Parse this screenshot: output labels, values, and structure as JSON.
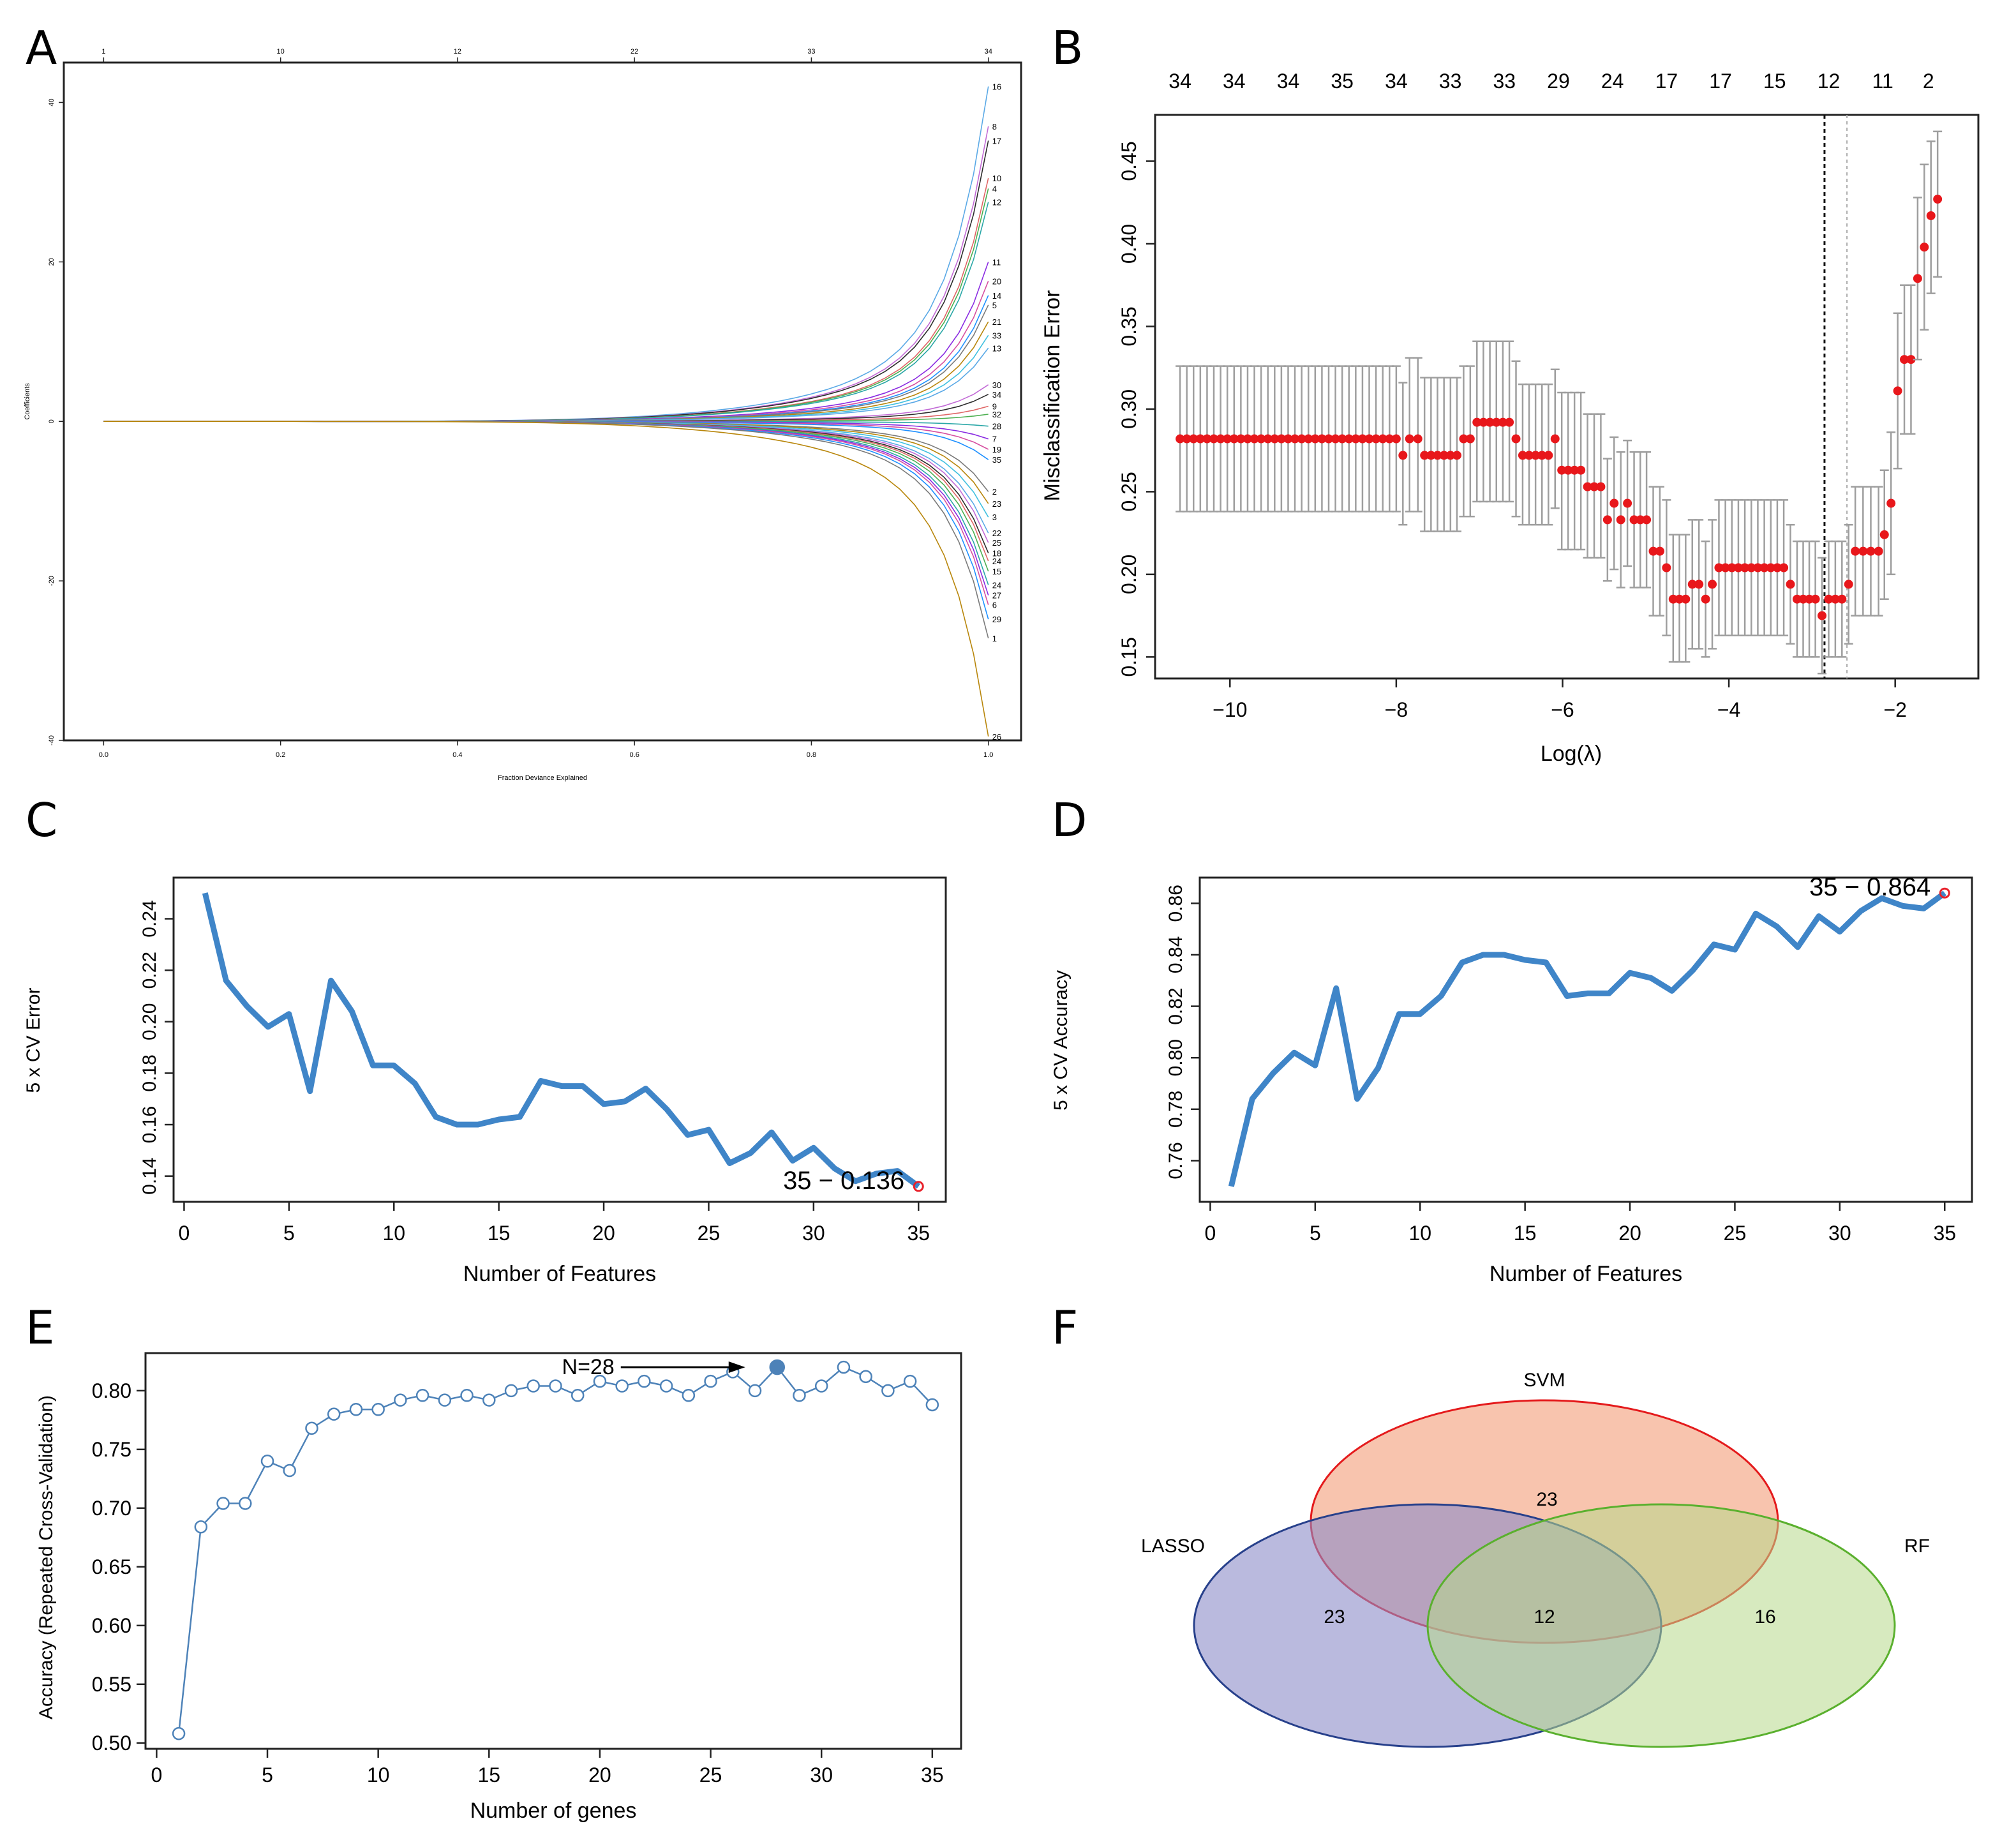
{
  "panels": {
    "A": {
      "letter": "A"
    },
    "B": {
      "letter": "B"
    },
    "C": {
      "letter": "C"
    },
    "D": {
      "letter": "D"
    },
    "E": {
      "letter": "E"
    },
    "F": {
      "letter": "F"
    }
  },
  "chart_data": [
    {
      "panel": "A",
      "type": "line",
      "title": "",
      "xlabel": "Fraction Deviance Explained",
      "ylabel": "Coefficients",
      "xlim": [
        0,
        1.0
      ],
      "ylim": [
        -40,
        45
      ],
      "x_ticks": [
        "0.0",
        "0.2",
        "0.4",
        "0.6",
        "0.8",
        "1.0"
      ],
      "x_tick_values": [
        0,
        0.2,
        0.4,
        0.6,
        0.8,
        1.0
      ],
      "y_ticks": [
        "-40",
        "-20",
        "0",
        "20",
        "40"
      ],
      "y_tick_values": [
        -40,
        -20,
        0,
        20,
        40
      ],
      "top_ticks": [
        "1",
        "10",
        "12",
        "22",
        "33",
        "34"
      ],
      "top_tick_values": [
        0,
        0.2,
        0.4,
        0.6,
        0.8,
        1.0
      ],
      "path_end_labels": [
        {
          "label": "16",
          "end": 42
        },
        {
          "label": "8",
          "end": 37
        },
        {
          "label": "17",
          "end": 35.2
        },
        {
          "label": "10",
          "end": 30.5
        },
        {
          "label": "4",
          "end": 29.2
        },
        {
          "label": "12",
          "end": 27.5
        },
        {
          "label": "11",
          "end": 20
        },
        {
          "label": "20",
          "end": 17.6
        },
        {
          "label": "14",
          "end": 15.8
        },
        {
          "label": "5",
          "end": 14.6
        },
        {
          "label": "21",
          "end": 12.5
        },
        {
          "label": "33",
          "end": 10.8
        },
        {
          "label": "13",
          "end": 9.2
        },
        {
          "label": "30",
          "end": 4.6
        },
        {
          "label": "34",
          "end": 3.4
        },
        {
          "label": "9",
          "end": 1.9
        },
        {
          "label": "32",
          "end": 0.9
        },
        {
          "label": "28",
          "end": -0.6
        },
        {
          "label": "7",
          "end": -2.2
        },
        {
          "label": "19",
          "end": -3.5
        },
        {
          "label": "35",
          "end": -4.8
        },
        {
          "label": "2",
          "end": -8.8
        },
        {
          "label": "23",
          "end": -10.3
        },
        {
          "label": "3",
          "end": -12
        },
        {
          "label": "22",
          "end": -14
        },
        {
          "label": "25",
          "end": -15.2
        },
        {
          "label": "18",
          "end": -16.5
        },
        {
          "label": "24",
          "end": -17.5
        },
        {
          "label": "15",
          "end": -18.8
        },
        {
          "label": "24",
          "end": -20.5
        },
        {
          "label": "27",
          "end": -21.8
        },
        {
          "label": "6",
          "end": -23
        },
        {
          "label": "29",
          "end": -24.8
        },
        {
          "label": "1",
          "end": -27.2
        },
        {
          "label": "26",
          "end": -39.5
        }
      ],
      "path_colors": [
        "#5aa9e6",
        "#c26ad6",
        "#2b2b2b",
        "#e06666",
        "#4caf50",
        "#2aa7a7",
        "#8a2be2",
        "#d64fa0",
        "#1e90ff",
        "#7a7a7a",
        "#b8860b",
        "#40c0e0"
      ]
    },
    {
      "panel": "B",
      "type": "scatter",
      "title": "",
      "xlabel": "Log(λ)",
      "ylabel": "Misclassification Error",
      "xlim": [
        -10.9,
        -1.0
      ],
      "ylim": [
        0.137,
        0.478
      ],
      "x_ticks": [
        "−10",
        "−8",
        "−6",
        "−4",
        "−2"
      ],
      "x_tick_values": [
        -10,
        -8,
        -6,
        -4,
        -2
      ],
      "y_ticks": [
        "0.15",
        "0.20",
        "0.25",
        "0.30",
        "0.35",
        "0.40",
        "0.45"
      ],
      "y_tick_values": [
        0.15,
        0.2,
        0.25,
        0.3,
        0.35,
        0.4,
        0.45
      ],
      "top_labels": [
        "34",
        "34",
        "34",
        "35",
        "34",
        "33",
        "33",
        "29",
        "24",
        "17",
        "17",
        "15",
        "12",
        "11",
        "2"
      ],
      "top_label_x": [
        -10.6,
        -9.95,
        -9.3,
        -8.65,
        -8.0,
        -7.35,
        -6.7,
        -6.05,
        -5.4,
        -4.75,
        -4.1,
        -3.45,
        -2.8,
        -2.15,
        -1.6
      ],
      "lambda_min": -2.85,
      "lambda_1se": -2.58,
      "segments": [
        {
          "x0": -10.6,
          "x1": -8.0,
          "n": 33,
          "mean": 0.282,
          "lo": 0.238,
          "hi": 0.326
        },
        {
          "x0": -7.92,
          "x1": -7.92,
          "n": 1,
          "mean": 0.272,
          "lo": 0.23,
          "hi": 0.316
        },
        {
          "x0": -7.84,
          "x1": -7.74,
          "n": 2,
          "mean": 0.282,
          "lo": 0.238,
          "hi": 0.331
        },
        {
          "x0": -7.66,
          "x1": -7.27,
          "n": 6,
          "mean": 0.272,
          "lo": 0.226,
          "hi": 0.319
        },
        {
          "x0": -7.19,
          "x1": -7.11,
          "n": 2,
          "mean": 0.282,
          "lo": 0.235,
          "hi": 0.326
        },
        {
          "x0": -7.03,
          "x1": -6.64,
          "n": 6,
          "mean": 0.292,
          "lo": 0.244,
          "hi": 0.341
        },
        {
          "x0": -6.56,
          "x1": -6.56,
          "n": 1,
          "mean": 0.282,
          "lo": 0.235,
          "hi": 0.329
        },
        {
          "x0": -6.48,
          "x1": -6.17,
          "n": 5,
          "mean": 0.272,
          "lo": 0.23,
          "hi": 0.315
        },
        {
          "x0": -6.09,
          "x1": -6.09,
          "n": 1,
          "mean": 0.282,
          "lo": 0.24,
          "hi": 0.324
        },
        {
          "x0": -6.01,
          "x1": -5.78,
          "n": 4,
          "mean": 0.263,
          "lo": 0.215,
          "hi": 0.31
        },
        {
          "x0": -5.7,
          "x1": -5.54,
          "n": 3,
          "mean": 0.253,
          "lo": 0.21,
          "hi": 0.297
        },
        {
          "x0": -5.46,
          "x1": -5.46,
          "n": 1,
          "mean": 0.233,
          "lo": 0.196,
          "hi": 0.27
        },
        {
          "x0": -5.38,
          "x1": -5.38,
          "n": 1,
          "mean": 0.243,
          "lo": 0.203,
          "hi": 0.283
        },
        {
          "x0": -5.3,
          "x1": -5.3,
          "n": 1,
          "mean": 0.233,
          "lo": 0.192,
          "hi": 0.274
        },
        {
          "x0": -5.22,
          "x1": -5.22,
          "n": 1,
          "mean": 0.243,
          "lo": 0.205,
          "hi": 0.281
        },
        {
          "x0": -5.14,
          "x1": -4.99,
          "n": 3,
          "mean": 0.233,
          "lo": 0.192,
          "hi": 0.274
        },
        {
          "x0": -4.91,
          "x1": -4.83,
          "n": 2,
          "mean": 0.214,
          "lo": 0.175,
          "hi": 0.253
        },
        {
          "x0": -4.75,
          "x1": -4.75,
          "n": 1,
          "mean": 0.204,
          "lo": 0.163,
          "hi": 0.245
        },
        {
          "x0": -4.67,
          "x1": -4.52,
          "n": 3,
          "mean": 0.185,
          "lo": 0.147,
          "hi": 0.224
        },
        {
          "x0": -4.44,
          "x1": -4.36,
          "n": 2,
          "mean": 0.194,
          "lo": 0.155,
          "hi": 0.233
        },
        {
          "x0": -4.28,
          "x1": -4.28,
          "n": 1,
          "mean": 0.185,
          "lo": 0.15,
          "hi": 0.22
        },
        {
          "x0": -4.2,
          "x1": -4.2,
          "n": 1,
          "mean": 0.194,
          "lo": 0.155,
          "hi": 0.233
        },
        {
          "x0": -4.12,
          "x1": -3.34,
          "n": 11,
          "mean": 0.204,
          "lo": 0.163,
          "hi": 0.245
        },
        {
          "x0": -3.26,
          "x1": -3.26,
          "n": 1,
          "mean": 0.194,
          "lo": 0.158,
          "hi": 0.23
        },
        {
          "x0": -3.18,
          "x1": -2.96,
          "n": 4,
          "mean": 0.185,
          "lo": 0.15,
          "hi": 0.22
        },
        {
          "x0": -2.88,
          "x1": -2.88,
          "n": 1,
          "mean": 0.175,
          "lo": 0.14,
          "hi": 0.21
        },
        {
          "x0": -2.8,
          "x1": -2.64,
          "n": 3,
          "mean": 0.185,
          "lo": 0.15,
          "hi": 0.22
        },
        {
          "x0": -2.56,
          "x1": -2.56,
          "n": 1,
          "mean": 0.194,
          "lo": 0.158,
          "hi": 0.23
        },
        {
          "x0": -2.48,
          "x1": -2.2,
          "n": 4,
          "mean": 0.214,
          "lo": 0.175,
          "hi": 0.253
        },
        {
          "x0": -2.13,
          "x1": -2.13,
          "n": 1,
          "mean": 0.224,
          "lo": 0.185,
          "hi": 0.263
        },
        {
          "x0": -2.05,
          "x1": -2.05,
          "n": 1,
          "mean": 0.243,
          "lo": 0.2,
          "hi": 0.286
        },
        {
          "x0": -1.97,
          "x1": -1.97,
          "n": 1,
          "mean": 0.311,
          "lo": 0.264,
          "hi": 0.358
        },
        {
          "x0": -1.89,
          "x1": -1.81,
          "n": 2,
          "mean": 0.33,
          "lo": 0.285,
          "hi": 0.375
        },
        {
          "x0": -1.73,
          "x1": -1.73,
          "n": 1,
          "mean": 0.379,
          "lo": 0.33,
          "hi": 0.428
        },
        {
          "x0": -1.65,
          "x1": -1.65,
          "n": 1,
          "mean": 0.398,
          "lo": 0.348,
          "hi": 0.448
        },
        {
          "x0": -1.57,
          "x1": -1.57,
          "n": 1,
          "mean": 0.417,
          "lo": 0.37,
          "hi": 0.462
        },
        {
          "x0": -1.49,
          "x1": -1.49,
          "n": 1,
          "mean": 0.427,
          "lo": 0.38,
          "hi": 0.468
        }
      ]
    },
    {
      "panel": "C",
      "type": "line",
      "title": "",
      "xlabel": "Number of Features",
      "ylabel": "5 x CV Error",
      "xlim": [
        -0.5,
        36.3
      ],
      "ylim": [
        0.13,
        0.256
      ],
      "x_ticks": [
        "0",
        "5",
        "10",
        "15",
        "20",
        "25",
        "30",
        "35"
      ],
      "x_tick_values": [
        0,
        5,
        10,
        15,
        20,
        25,
        30,
        35
      ],
      "y_ticks": [
        "0.14",
        "0.16",
        "0.18",
        "0.20",
        "0.22",
        "0.24"
      ],
      "y_tick_values": [
        0.14,
        0.16,
        0.18,
        0.2,
        0.22,
        0.24
      ],
      "x": [
        1,
        2,
        3,
        4,
        5,
        6,
        7,
        8,
        9,
        10,
        11,
        12,
        13,
        14,
        15,
        16,
        17,
        18,
        19,
        20,
        21,
        22,
        23,
        24,
        25,
        26,
        27,
        28,
        29,
        30,
        31,
        32,
        33,
        34,
        35
      ],
      "y": [
        0.25,
        0.216,
        0.206,
        0.198,
        0.203,
        0.173,
        0.216,
        0.204,
        0.183,
        0.183,
        0.176,
        0.163,
        0.16,
        0.16,
        0.162,
        0.163,
        0.177,
        0.175,
        0.175,
        0.168,
        0.169,
        0.174,
        0.166,
        0.156,
        0.158,
        0.145,
        0.149,
        0.157,
        0.146,
        0.151,
        0.143,
        0.138,
        0.141,
        0.142,
        0.136
      ],
      "annotation": "35 − 0.136",
      "annotation_color": "#e8212b",
      "line_color": "#3f85c8"
    },
    {
      "panel": "D",
      "type": "line",
      "title": "",
      "xlabel": "Number of Features",
      "ylabel": "5 x CV Accuracy",
      "xlim": [
        -0.5,
        36.3
      ],
      "ylim": [
        0.744,
        0.87
      ],
      "x_ticks": [
        "0",
        "5",
        "10",
        "15",
        "20",
        "25",
        "30",
        "35"
      ],
      "x_tick_values": [
        0,
        5,
        10,
        15,
        20,
        25,
        30,
        35
      ],
      "y_ticks": [
        "0.76",
        "0.78",
        "0.80",
        "0.82",
        "0.84",
        "0.86"
      ],
      "y_tick_values": [
        0.76,
        0.78,
        0.8,
        0.82,
        0.84,
        0.86
      ],
      "x": [
        1,
        2,
        3,
        4,
        5,
        6,
        7,
        8,
        9,
        10,
        11,
        12,
        13,
        14,
        15,
        16,
        17,
        18,
        19,
        20,
        21,
        22,
        23,
        24,
        25,
        26,
        27,
        28,
        29,
        30,
        31,
        32,
        33,
        34,
        35
      ],
      "y": [
        0.75,
        0.784,
        0.794,
        0.802,
        0.797,
        0.827,
        0.784,
        0.796,
        0.817,
        0.817,
        0.824,
        0.837,
        0.84,
        0.84,
        0.838,
        0.837,
        0.824,
        0.825,
        0.825,
        0.833,
        0.831,
        0.826,
        0.834,
        0.844,
        0.842,
        0.856,
        0.851,
        0.843,
        0.855,
        0.849,
        0.857,
        0.862,
        0.859,
        0.858,
        0.864
      ],
      "annotation": "35 − 0.864",
      "annotation_color": "#e8212b",
      "line_color": "#3f85c8"
    },
    {
      "panel": "E",
      "type": "line",
      "title": "",
      "xlabel": "Number of genes",
      "ylabel": "Accuracy (Repeated Cross-Validation)",
      "xlim": [
        -0.5,
        36.3
      ],
      "ylim": [
        0.495,
        0.832
      ],
      "x_ticks": [
        "0",
        "5",
        "10",
        "15",
        "20",
        "25",
        "30",
        "35"
      ],
      "x_tick_values": [
        0,
        5,
        10,
        15,
        20,
        25,
        30,
        35
      ],
      "y_ticks": [
        "0.50",
        "0.55",
        "0.60",
        "0.65",
        "0.70",
        "0.75",
        "0.80"
      ],
      "y_tick_values": [
        0.5,
        0.55,
        0.6,
        0.65,
        0.7,
        0.75,
        0.8
      ],
      "x": [
        1,
        2,
        3,
        4,
        5,
        6,
        7,
        8,
        9,
        10,
        11,
        12,
        13,
        14,
        15,
        16,
        17,
        18,
        19,
        20,
        21,
        22,
        23,
        24,
        25,
        26,
        27,
        28,
        29,
        30,
        31,
        32,
        33,
        34,
        35
      ],
      "y": [
        0.508,
        0.684,
        0.704,
        0.704,
        0.74,
        0.732,
        0.768,
        0.78,
        0.784,
        0.784,
        0.792,
        0.796,
        0.792,
        0.796,
        0.792,
        0.8,
        0.804,
        0.804,
        0.796,
        0.808,
        0.804,
        0.808,
        0.804,
        0.796,
        0.808,
        0.816,
        0.8,
        0.82,
        0.796,
        0.804,
        0.82,
        0.812,
        0.8,
        0.808,
        0.788
      ],
      "highlight_x": 28,
      "annotation": "N=28",
      "line_color": "#4d82b8"
    },
    {
      "panel": "F",
      "type": "venn",
      "sets": [
        {
          "name": "SVM",
          "fill": "#f4a582",
          "stroke": "#e41a1c"
        },
        {
          "name": "LASSO",
          "fill": "#8c8cc8",
          "stroke": "#27408b"
        },
        {
          "name": "RF",
          "fill": "#b7d98b",
          "stroke": "#5ab02e"
        }
      ],
      "region_counts": {
        "svm_only": "23",
        "lasso_only": "23",
        "rf_only": "16",
        "all_three": "12"
      }
    }
  ]
}
